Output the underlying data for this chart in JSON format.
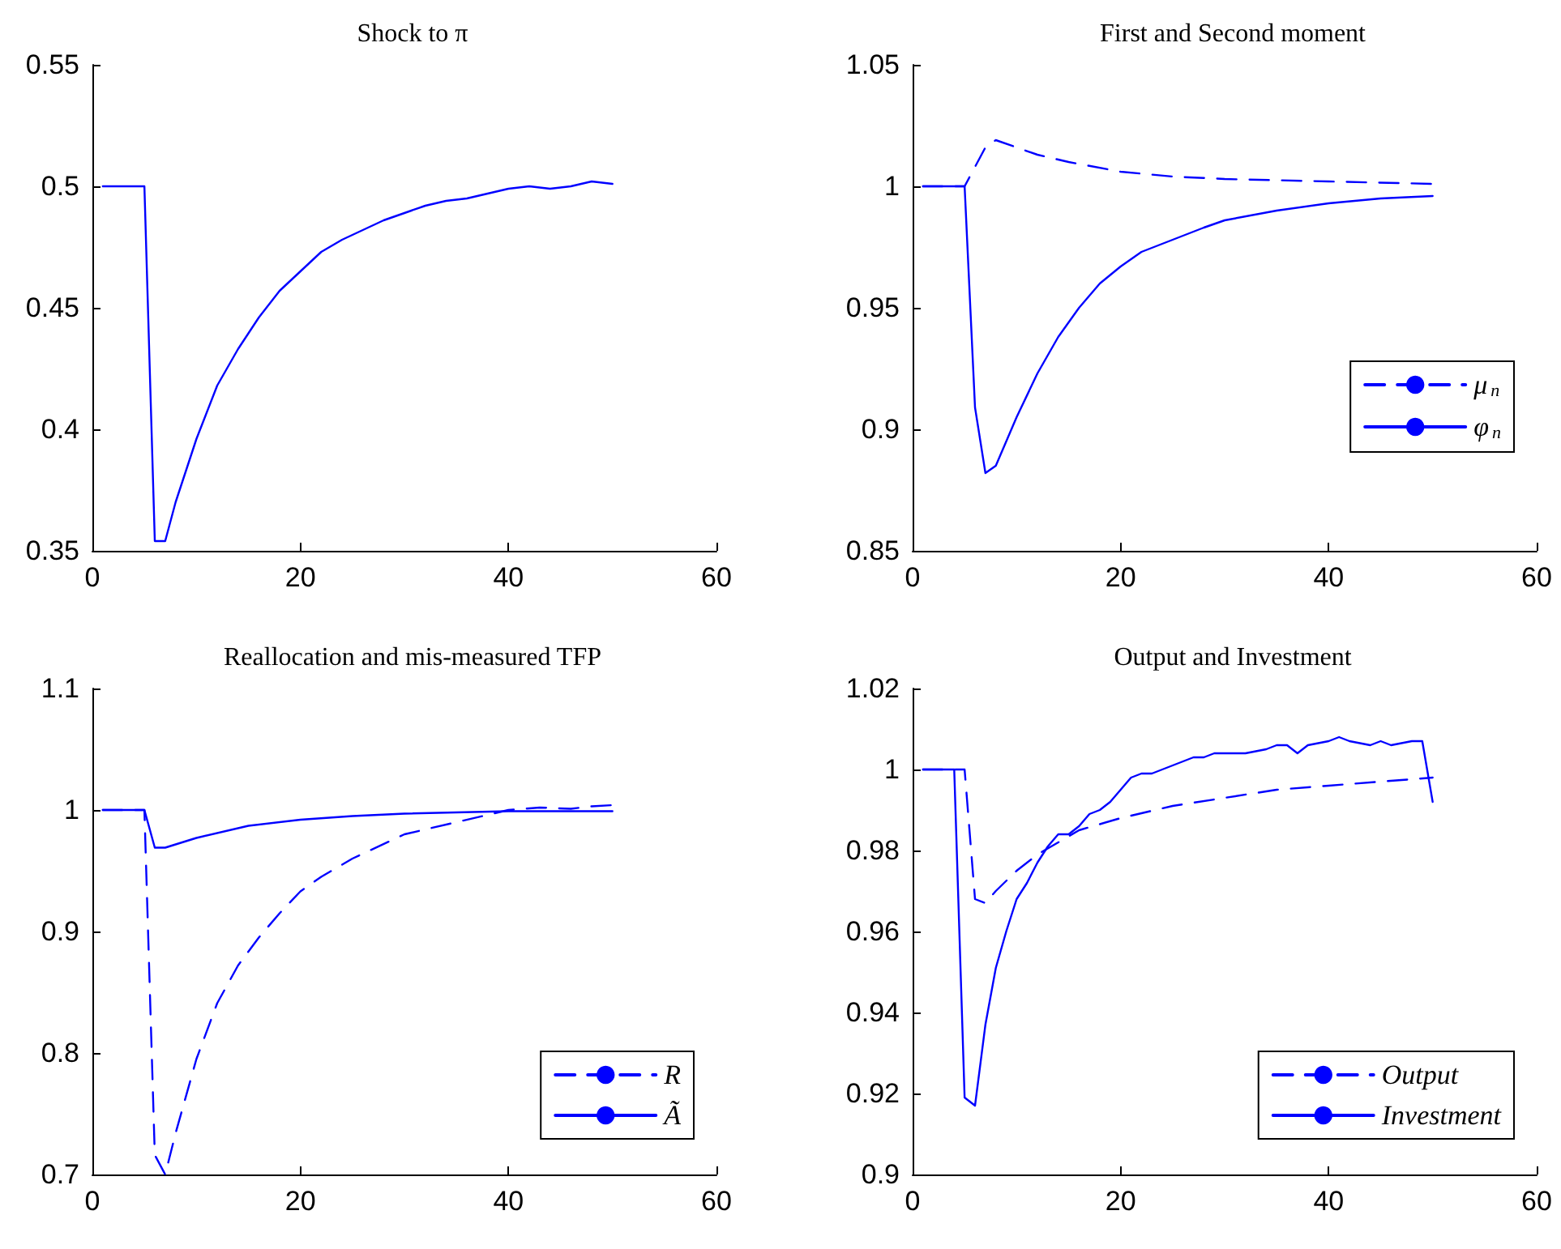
{
  "chart_data": [
    {
      "type": "line",
      "title": "Shock to π",
      "xlim": [
        0,
        60
      ],
      "xticks": [
        0,
        20,
        40,
        60
      ],
      "ylim": [
        0.35,
        0.55
      ],
      "yticks": [
        0.35,
        0.4,
        0.45,
        0.5,
        0.55
      ],
      "legend": false,
      "series": [
        {
          "color": "#0000ff",
          "line_style": "solid",
          "x": [
            1,
            5,
            6,
            7,
            8,
            10,
            12,
            14,
            16,
            18,
            20,
            22,
            24,
            26,
            28,
            30,
            32,
            34,
            36,
            38,
            40,
            42,
            44,
            46,
            48,
            50
          ],
          "values": [
            0.5,
            0.5,
            0.354,
            0.354,
            0.37,
            0.396,
            0.418,
            0.433,
            0.446,
            0.457,
            0.465,
            0.473,
            0.478,
            0.482,
            0.486,
            0.489,
            0.492,
            0.494,
            0.495,
            0.497,
            0.499,
            0.5,
            0.499,
            0.5,
            0.502,
            0.501
          ]
        }
      ]
    },
    {
      "type": "line",
      "title": "First and Second moment",
      "xlim": [
        0,
        60
      ],
      "xticks": [
        0,
        20,
        40,
        60
      ],
      "ylim": [
        0.85,
        1.05
      ],
      "yticks": [
        0.85,
        0.9,
        0.95,
        1,
        1.05
      ],
      "legend": "right",
      "series": [
        {
          "name": "μ$_{n}$",
          "color": "#0000ff",
          "line_style": "dashed",
          "x": [
            1,
            5,
            7,
            8,
            10,
            12,
            15,
            20,
            25,
            30,
            40,
            50
          ],
          "values": [
            1,
            1,
            1.016,
            1.019,
            1.016,
            1.013,
            1.01,
            1.006,
            1.004,
            1.003,
            1.002,
            1.001
          ]
        },
        {
          "name": "φ$_{n}$",
          "color": "#0000ff",
          "line_style": "solid",
          "x": [
            1,
            5,
            6,
            7,
            8,
            10,
            12,
            14,
            16,
            18,
            20,
            22,
            25,
            28,
            30,
            35,
            40,
            45,
            50
          ],
          "values": [
            1,
            1,
            0.909,
            0.882,
            0.885,
            0.905,
            0.923,
            0.938,
            0.95,
            0.96,
            0.967,
            0.973,
            0.978,
            0.983,
            0.986,
            0.99,
            0.993,
            0.995,
            0.996
          ]
        }
      ]
    },
    {
      "type": "line",
      "title": "Reallocation and mis-measured TFP",
      "xlim": [
        0,
        60
      ],
      "xticks": [
        0,
        20,
        40,
        60
      ],
      "ylim": [
        0.7,
        1.1
      ],
      "yticks": [
        0.7,
        0.8,
        0.9,
        1,
        1.1
      ],
      "legend": "bottom right",
      "series": [
        {
          "name": "R",
          "color": "#0000ff",
          "line_style": "dashed",
          "x": [
            1,
            5,
            6,
            7,
            8,
            10,
            12,
            14,
            16,
            18,
            20,
            22,
            25,
            30,
            35,
            40,
            43,
            46,
            48,
            50
          ],
          "values": [
            1,
            1,
            0.716,
            0.7,
            0.734,
            0.795,
            0.841,
            0.872,
            0.895,
            0.915,
            0.933,
            0.945,
            0.96,
            0.98,
            0.99,
            1.0,
            1.002,
            1.001,
            1.003,
            1.004
          ]
        },
        {
          "name": "Ã",
          "color": "#0000ff",
          "line_style": "solid",
          "x": [
            1,
            5,
            6,
            7,
            10,
            15,
            20,
            25,
            30,
            40,
            50
          ],
          "values": [
            1,
            1,
            0.969,
            0.969,
            0.977,
            0.987,
            0.992,
            0.995,
            0.997,
            0.999,
            0.999
          ]
        }
      ]
    },
    {
      "type": "line",
      "title": "Output and Investment",
      "xlim": [
        0,
        60
      ],
      "xticks": [
        0,
        20,
        40,
        60
      ],
      "ylim": [
        0.9,
        1.02
      ],
      "yticks": [
        0.9,
        0.92,
        0.94,
        0.96,
        0.98,
        1,
        1.02
      ],
      "legend": "bottom right",
      "series": [
        {
          "name": "Output",
          "color": "#0000ff",
          "line_style": "dashed",
          "x": [
            1,
            5,
            6,
            7,
            8,
            10,
            12,
            14,
            16,
            20,
            25,
            30,
            35,
            40,
            45,
            50
          ],
          "values": [
            1,
            1,
            0.968,
            0.967,
            0.97,
            0.975,
            0.979,
            0.982,
            0.985,
            0.988,
            0.991,
            0.993,
            0.995,
            0.996,
            0.997,
            0.998
          ]
        },
        {
          "name": "Investment",
          "color": "#0000ff",
          "line_style": "solid",
          "x": [
            1,
            4,
            5,
            6,
            7,
            8,
            9,
            10,
            11,
            12,
            13,
            14,
            15,
            16,
            17,
            18,
            19,
            20,
            21,
            22,
            23,
            24,
            25,
            26,
            27,
            28,
            29,
            30,
            32,
            34,
            35,
            36,
            37,
            38,
            40,
            41,
            42,
            44,
            45,
            46,
            48,
            49,
            50
          ],
          "values": [
            1,
            1,
            0.919,
            0.917,
            0.937,
            0.951,
            0.96,
            0.968,
            0.972,
            0.977,
            0.981,
            0.984,
            0.984,
            0.986,
            0.989,
            0.99,
            0.992,
            0.995,
            0.998,
            0.999,
            0.999,
            1.0,
            1.001,
            1.002,
            1.003,
            1.003,
            1.004,
            1.004,
            1.004,
            1.005,
            1.006,
            1.006,
            1.004,
            1.006,
            1.007,
            1.008,
            1.007,
            1.006,
            1.007,
            1.006,
            1.007,
            1.007,
            0.992
          ]
        }
      ]
    }
  ]
}
